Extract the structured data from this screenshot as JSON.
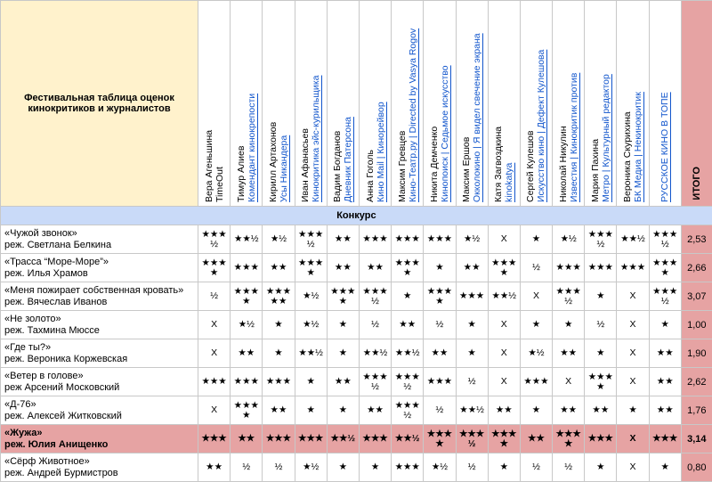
{
  "header": {
    "title": "Фестивальная таблица оценок кинокритиков и журналистов",
    "total_label": "ИТОГО"
  },
  "critics": [
    {
      "name": "Вера Агеньшина",
      "outlet": "TimeOut"
    },
    {
      "name": "Тимур Алиев",
      "outlet": "Комендант кинокрепости"
    },
    {
      "name": "Кирилл Артахонов",
      "outlet": "Усы Никандера"
    },
    {
      "name": "Иван Афанасьев",
      "outlet": "Кинокритика эйс-курильщика"
    },
    {
      "name": "Вадим Богданов",
      "outlet": "Дневник Патерсона"
    },
    {
      "name": "Анна Гоголь",
      "outlet": "Кино Mail | Кинорейвор"
    },
    {
      "name": "Максим Гревцев",
      "outlet": "Кино-Театр.ру | Directed by Vasya Rogov"
    },
    {
      "name": "Никита Демченко",
      "outlet": "Кинопоиск | Седьмое искусство"
    },
    {
      "name": "Максим Ершов",
      "outlet": "Окколокино | Я видел свечение экрана"
    },
    {
      "name": "Катя Загвоздкина",
      "outlet": "kinokatya"
    },
    {
      "name": "Сергей Кулешов",
      "outlet": "Искусство кино | Дефект Кулешова"
    },
    {
      "name": "Николай Никулин",
      "outlet": "Известия | Кинокритик против"
    },
    {
      "name": "Мария Пахина",
      "outlet": "Метро | Культурный редактор"
    },
    {
      "name": "Вероника Скурихина",
      "outlet": "БК Медиа | Некинокритик"
    },
    {
      "outlet": "РУССКОЕ КИНО В ТОПЕ"
    }
  ],
  "section": "Конкурс",
  "rows": [
    {
      "film": "«Чужой звонок»",
      "director": "реж. Светлана Белкина",
      "ratings": [
        "★★★½",
        "★★½",
        "★½",
        "★★★½",
        "★★",
        "★★★",
        "★★★",
        "★★★",
        "★½",
        "X",
        "★",
        "★½",
        "★★★½",
        "★★½",
        "★★★½"
      ],
      "total": "2,53"
    },
    {
      "film": "«Трасса “Море-Море”»",
      "director": "реж. Илья Храмов",
      "ratings": [
        "★★★★",
        "★★★",
        "★★",
        "★★★★",
        "★★",
        "★★",
        "★★★★",
        "★",
        "★★",
        "★★★★",
        "½",
        "★★★",
        "★★★",
        "★★★",
        "★★★★"
      ],
      "total": "2,66"
    },
    {
      "film": "«Меня пожирает собственная кровать»",
      "director": "реж. Вячеслав Иванов",
      "ratings": [
        "½",
        "★★★★",
        "★★★★★",
        "★½",
        "★★★★",
        "★★★½",
        "★",
        "★★★★",
        "★★★",
        "★★½",
        "X",
        "★★★½",
        "★",
        "X",
        "★★★½"
      ],
      "total": "3,07"
    },
    {
      "film": "«Не золото»",
      "director": "реж. Тахмина Мюссе",
      "ratings": [
        "X",
        "★½",
        "★",
        "★½",
        "★",
        "½",
        "★★",
        "½",
        "★",
        "X",
        "★",
        "★",
        "½",
        "X",
        "★"
      ],
      "total": "1,00"
    },
    {
      "film": "«Где ты?»",
      "director": "реж. Вероника Коржевская",
      "ratings": [
        "X",
        "★★",
        "★",
        "★★½",
        "★",
        "★★½",
        "★★½",
        "★★",
        "★",
        "X",
        "★½",
        "★★",
        "★",
        "X",
        "★★"
      ],
      "total": "1,90"
    },
    {
      "film": "«Ветер в голове»",
      "director": "реж Арсений Московский",
      "ratings": [
        "★★★",
        "★★★",
        "★★★",
        "★",
        "★★",
        "★★★½",
        "★★★½",
        "★★★",
        "½",
        "X",
        "★★★",
        "X",
        "★★★★",
        "X",
        "★★"
      ],
      "total": "2,62"
    },
    {
      "film": "«Д-76»",
      "director": "реж. Алексей Житковский",
      "ratings": [
        "X",
        "★★★★",
        "★★",
        "★",
        "★",
        "★★",
        "★★★½",
        "½",
        "★★½",
        "★★",
        "★",
        "★★",
        "★★",
        "★",
        "★★"
      ],
      "total": "1,76"
    },
    {
      "film": "«Жужа»",
      "director": "реж. Юлия Анищенко",
      "ratings": [
        "★★★",
        "★★",
        "★★★",
        "★★★",
        "★★½",
        "★★★",
        "★★½",
        "★★★★",
        "★★★½",
        "★★★★",
        "★★",
        "★★★★",
        "★★★",
        "X",
        "★★★"
      ],
      "total": "3,14",
      "highlight": true
    },
    {
      "film": "«Сёрф Животное»",
      "director": "реж. Андрей Бурмистров",
      "ratings": [
        "★★",
        "½",
        "½",
        "★½",
        "★",
        "★",
        "★★★",
        "★½",
        "½",
        "★",
        "½",
        "½",
        "★",
        "X",
        "★"
      ],
      "total": "0,80"
    }
  ]
}
